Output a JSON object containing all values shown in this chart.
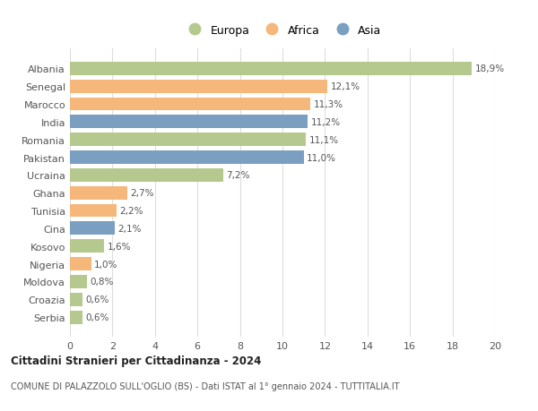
{
  "countries": [
    "Albania",
    "Senegal",
    "Marocco",
    "India",
    "Romania",
    "Pakistan",
    "Ucraina",
    "Ghana",
    "Tunisia",
    "Cina",
    "Kosovo",
    "Nigeria",
    "Moldova",
    "Croazia",
    "Serbia"
  ],
  "values": [
    18.9,
    12.1,
    11.3,
    11.2,
    11.1,
    11.0,
    7.2,
    2.7,
    2.2,
    2.1,
    1.6,
    1.0,
    0.8,
    0.6,
    0.6
  ],
  "labels": [
    "18,9%",
    "12,1%",
    "11,3%",
    "11,2%",
    "11,1%",
    "11,0%",
    "7,2%",
    "2,7%",
    "2,2%",
    "2,1%",
    "1,6%",
    "1,0%",
    "0,8%",
    "0,6%",
    "0,6%"
  ],
  "continents": [
    "Europa",
    "Africa",
    "Africa",
    "Asia",
    "Europa",
    "Asia",
    "Europa",
    "Africa",
    "Africa",
    "Asia",
    "Europa",
    "Africa",
    "Europa",
    "Europa",
    "Europa"
  ],
  "colors": {
    "Europa": "#b5c98e",
    "Africa": "#f5b87a",
    "Asia": "#7a9fc0"
  },
  "title": "Cittadini Stranieri per Cittadinanza - 2024",
  "subtitle": "COMUNE DI PALAZZOLO SULL'OGLIO (BS) - Dati ISTAT al 1° gennaio 2024 - TUTTITALIA.IT",
  "xlim": [
    0,
    20
  ],
  "xticks": [
    0,
    2,
    4,
    6,
    8,
    10,
    12,
    14,
    16,
    18,
    20
  ],
  "legend_labels": [
    "Europa",
    "Africa",
    "Asia"
  ],
  "background_color": "#ffffff",
  "grid_color": "#dddddd"
}
